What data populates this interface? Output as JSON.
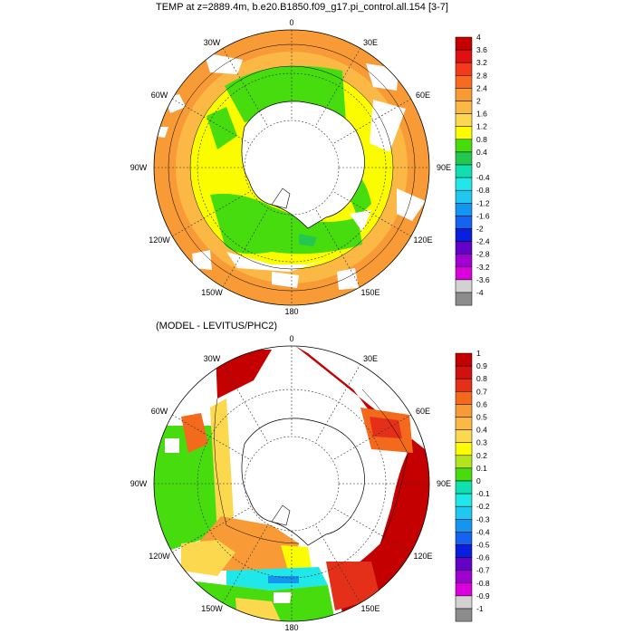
{
  "panel1": {
    "title": "TEMP at z=2889.4m, b.e20.B1850.f09_g17.pi_control.all.154 [3-7]",
    "lon_labels": {
      "n": "0",
      "nne": "30E",
      "ene": "60E",
      "e": "90E",
      "ese": "120E",
      "sse": "150E",
      "s": "180",
      "ssw": "150W",
      "wsw": "120W",
      "w": "90W",
      "wnw": "60W",
      "nnw": "30W"
    },
    "colorbar": {
      "labels": [
        "4",
        "3.6",
        "3.2",
        "2.8",
        "2.4",
        "2",
        "1.6",
        "1.2",
        "0.8",
        "0.4",
        "0",
        "-0.4",
        "-0.8",
        "-1.2",
        "-1.6",
        "-2",
        "-2.4",
        "-2.8",
        "-3.2",
        "-3.6",
        "-4"
      ],
      "colors": [
        "#c40000",
        "#e01010",
        "#f43a1a",
        "#f86a20",
        "#f89a36",
        "#fbb845",
        "#fcd84e",
        "#fcfc00",
        "#46dc0e",
        "#24c850",
        "#10e0b0",
        "#20e8e8",
        "#20c8f0",
        "#1496f0",
        "#1464f0",
        "#0a1ee0",
        "#6400c8",
        "#a000d2",
        "#dc00dc",
        "#d2d2d2",
        "#8c8c8c"
      ]
    }
  },
  "panel2": {
    "title": "(MODEL - LEVITUS/PHC2)",
    "lon_labels": {
      "n": "0",
      "nne": "30E",
      "ene": "60E",
      "e": "90E",
      "ese": "120E",
      "sse": "150E",
      "s": "180",
      "ssw": "150W",
      "wsw": "120W",
      "w": "90W",
      "wnw": "60W",
      "nnw": "30W"
    },
    "colorbar": {
      "labels": [
        "1",
        "0.9",
        "0.8",
        "0.7",
        "0.6",
        "0.5",
        "0.4",
        "0.3",
        "0.2",
        "0.1",
        "0",
        "-0.1",
        "-0.2",
        "-0.3",
        "-0.4",
        "-0.5",
        "-0.6",
        "-0.7",
        "-0.8",
        "-0.9",
        "-1"
      ],
      "colors": [
        "#c40000",
        "#d21010",
        "#e43018",
        "#f46a1c",
        "#f89a36",
        "#fbb845",
        "#fcd84e",
        "#fcfc00",
        "#b4e420",
        "#46dc0e",
        "#10e0b0",
        "#20e8e8",
        "#20c8f0",
        "#1496f0",
        "#1464f0",
        "#0a1ee0",
        "#6400c8",
        "#a000d2",
        "#dc00dc",
        "#d2d2d2",
        "#8c8c8c"
      ]
    }
  }
}
